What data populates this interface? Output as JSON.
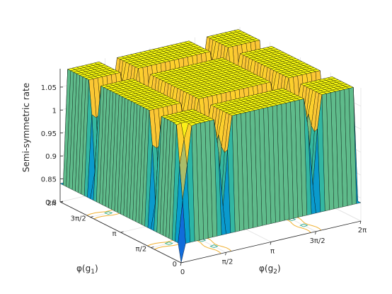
{
  "chart_data": {
    "type": "surface3d",
    "title": "",
    "zlabel": "Semi-symmetric rate",
    "xlabel_text": "φ(g",
    "xlabel_sub": "1",
    "xlabel_close": ")",
    "ylabel_text": "φ(g",
    "ylabel_sub": "2",
    "ylabel_close": ")",
    "xlim": [
      0,
      6.2832
    ],
    "ylim": [
      0,
      6.2832
    ],
    "zlim": [
      0.8,
      1.09
    ],
    "x_ticks": [
      {
        "value": 0,
        "label": "0"
      },
      {
        "value": 1.5708,
        "label": "π/2"
      },
      {
        "value": 3.1416,
        "label": "π"
      },
      {
        "value": 4.7124,
        "label": "3π/2"
      },
      {
        "value": 6.2832,
        "label": "2π"
      }
    ],
    "y_ticks": [
      {
        "value": 0,
        "label": "0"
      },
      {
        "value": 1.5708,
        "label": "π/2"
      },
      {
        "value": 3.1416,
        "label": "π"
      },
      {
        "value": 4.7124,
        "label": "3π/2"
      },
      {
        "value": 6.2832,
        "label": "2π"
      }
    ],
    "z_ticks": [
      {
        "value": 0.8,
        "label": "0.8"
      },
      {
        "value": 0.85,
        "label": "0.85"
      },
      {
        "value": 0.9,
        "label": "0.9"
      },
      {
        "value": 0.95,
        "label": "0.95"
      },
      {
        "value": 1,
        "label": "1"
      },
      {
        "value": 1.05,
        "label": "1.05"
      }
    ],
    "surface": {
      "grid_points": 41,
      "plateau_value": 1.09,
      "dip_lines_phi1": [
        1.5708,
        4.7124
      ],
      "dip_lines_phi2": [
        1.5708,
        4.7124
      ],
      "dip_band_width": 0.25,
      "dip_depth": 0.22,
      "deep_minimum_at": [
        0,
        0
      ],
      "deep_minimum_value": 0.8
    },
    "contour_projection": {
      "z_level": 0.8,
      "colors": [
        "#f0b030",
        "#2ab07f",
        "#20a486"
      ]
    },
    "colormap": [
      "#352a87",
      "#0f5cdd",
      "#1481d6",
      "#06a4ca",
      "#2eb7a4",
      "#87bf77",
      "#d1bb59",
      "#fec832",
      "#f9fb0e"
    ],
    "grid": true,
    "legend": "none"
  }
}
